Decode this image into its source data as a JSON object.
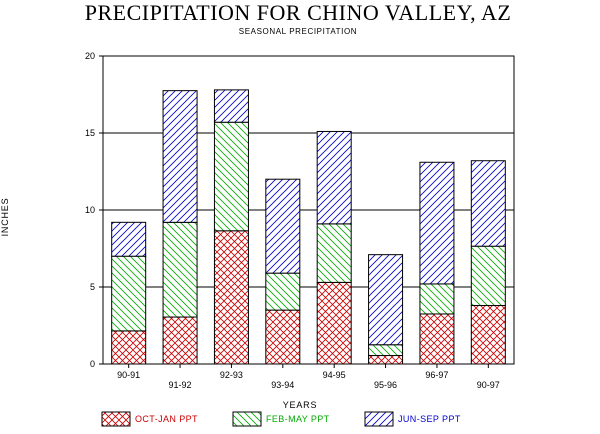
{
  "chart_data": {
    "type": "bar",
    "stacked": true,
    "title": "PRECIPITATION FOR CHINO VALLEY, AZ",
    "subtitle": "SEASONAL PRECIPITATION",
    "xlabel": "YEARS",
    "ylabel": "INCHES",
    "ylim": [
      0,
      20
    ],
    "yticks": [
      0,
      5,
      10,
      15,
      20
    ],
    "grid": true,
    "legend_position": "bottom",
    "categories": [
      "90-91",
      "91-92",
      "92-93",
      "93-94",
      "94-95",
      "95-96",
      "96-97",
      "90-97"
    ],
    "series": [
      {
        "name": "OCT-JAN PPT",
        "values": [
          2.15,
          3.05,
          8.65,
          3.5,
          5.3,
          0.55,
          3.25,
          3.8
        ],
        "color": "#cc0000",
        "pattern": "crosshatch"
      },
      {
        "name": "FEB-MAY PPT",
        "values": [
          4.85,
          6.15,
          7.05,
          2.4,
          3.8,
          0.7,
          1.95,
          3.85
        ],
        "color": "#00aa00",
        "pattern": "diagonal-down"
      },
      {
        "name": "JUN-SEP PPT",
        "values": [
          2.2,
          8.55,
          2.1,
          6.1,
          6.0,
          5.85,
          7.9,
          5.55
        ],
        "color": "#0000cc",
        "pattern": "diagonal-up"
      }
    ]
  }
}
